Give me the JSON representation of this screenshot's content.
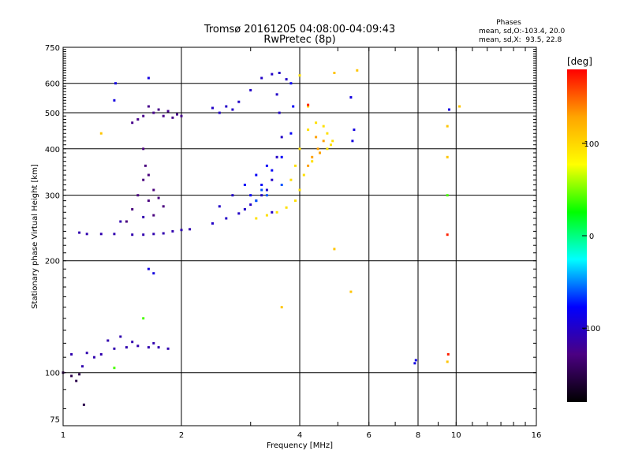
{
  "chart_data": {
    "type": "scatter",
    "title": "Tromsø 20161205 04:08:00-04:09:43",
    "subtitle": "RwPretec (8p)",
    "xlabel": "Frequency [MHz]",
    "ylabel": "Stationary phase Virtual Height [km]",
    "x_scale": "log",
    "y_scale": "log",
    "xlim": [
      1,
      16
    ],
    "ylim": [
      72,
      750
    ],
    "x_ticks": [
      1,
      2,
      4,
      6,
      8,
      10,
      16
    ],
    "y_ticks": [
      75,
      100,
      200,
      300,
      400,
      500,
      600,
      750
    ],
    "x_grid": [
      2,
      4,
      6,
      8,
      10
    ],
    "y_grid": [
      100,
      200,
      300,
      400,
      500,
      600
    ],
    "phase_info": {
      "heading": "Phases",
      "line_o": "mean, sd,O:-103.4, 20.0",
      "line_x": "mean, sd,X:  93.5, 22.8"
    },
    "colorbar": {
      "label": "[deg]",
      "range": [
        -180,
        180
      ],
      "ticks": [
        100,
        0,
        -100
      ],
      "colormap": "rainbow",
      "colors": [
        "#000000",
        "#4b0082",
        "#0000ff",
        "#00ffff",
        "#00ff00",
        "#ffff00",
        "#ffa500",
        "#ff0000"
      ]
    },
    "series": [
      {
        "mode": "O",
        "phase": -150,
        "points": [
          [
            1.0,
            100
          ],
          [
            1.05,
            98
          ],
          [
            1.1,
            99
          ],
          [
            1.13,
            82
          ],
          [
            1.08,
            95
          ]
        ]
      },
      {
        "mode": "O",
        "phase": -110,
        "points": [
          [
            1.05,
            112
          ],
          [
            1.15,
            113
          ],
          [
            1.25,
            112
          ],
          [
            1.35,
            116
          ],
          [
            1.45,
            117
          ],
          [
            1.55,
            118
          ],
          [
            1.65,
            117
          ],
          [
            1.75,
            117
          ],
          [
            1.85,
            116
          ],
          [
            1.3,
            122
          ],
          [
            1.5,
            121
          ],
          [
            1.7,
            120
          ],
          [
            1.12,
            104
          ],
          [
            1.2,
            110
          ],
          [
            1.4,
            125
          ]
        ]
      },
      {
        "mode": "O",
        "phase": -110,
        "points": [
          [
            1.1,
            238
          ],
          [
            1.15,
            236
          ],
          [
            1.25,
            236
          ],
          [
            1.35,
            236
          ],
          [
            1.5,
            235
          ],
          [
            1.6,
            235
          ],
          [
            1.7,
            236
          ],
          [
            1.8,
            237
          ],
          [
            1.9,
            240
          ],
          [
            2.0,
            242
          ],
          [
            2.1,
            243
          ],
          [
            1.4,
            255
          ],
          [
            1.6,
            262
          ]
        ]
      },
      {
        "mode": "O",
        "phase": -130,
        "points": [
          [
            1.45,
            255
          ],
          [
            1.5,
            275
          ],
          [
            1.55,
            300
          ],
          [
            1.6,
            330
          ],
          [
            1.62,
            360
          ],
          [
            1.6,
            400
          ],
          [
            1.65,
            290
          ],
          [
            1.7,
            310
          ],
          [
            1.75,
            295
          ],
          [
            1.8,
            280
          ],
          [
            1.65,
            340
          ],
          [
            1.7,
            265
          ]
        ]
      },
      {
        "mode": "O",
        "phase": -125,
        "points": [
          [
            1.5,
            470
          ],
          [
            1.6,
            490
          ],
          [
            1.7,
            500
          ],
          [
            1.8,
            490
          ],
          [
            1.9,
            485
          ],
          [
            2.0,
            490
          ],
          [
            1.65,
            520
          ],
          [
            1.75,
            510
          ],
          [
            1.85,
            505
          ],
          [
            1.95,
            495
          ],
          [
            1.55,
            480
          ]
        ]
      },
      {
        "mode": "O",
        "phase": -100,
        "points": [
          [
            2.4,
            515
          ],
          [
            2.6,
            520
          ],
          [
            2.8,
            535
          ],
          [
            3.0,
            575
          ],
          [
            3.2,
            620
          ],
          [
            3.4,
            635
          ],
          [
            3.55,
            640
          ],
          [
            3.7,
            615
          ],
          [
            2.5,
            500
          ],
          [
            2.7,
            510
          ]
        ]
      },
      {
        "mode": "O",
        "phase": -100,
        "points": [
          [
            2.4,
            252
          ],
          [
            2.6,
            260
          ],
          [
            2.8,
            268
          ],
          [
            2.9,
            275
          ],
          [
            3.0,
            283
          ],
          [
            3.1,
            290
          ],
          [
            3.2,
            300
          ],
          [
            3.3,
            310
          ],
          [
            3.4,
            330
          ],
          [
            3.5,
            380
          ],
          [
            3.6,
            430
          ],
          [
            3.55,
            500
          ],
          [
            3.5,
            560
          ],
          [
            2.5,
            280
          ],
          [
            2.7,
            300
          ],
          [
            3.4,
            270
          ]
        ]
      },
      {
        "mode": "O",
        "phase": -80,
        "points": [
          [
            3.0,
            300
          ],
          [
            3.2,
            320
          ],
          [
            3.4,
            350
          ],
          [
            3.6,
            380
          ],
          [
            3.8,
            440
          ],
          [
            3.85,
            520
          ],
          [
            3.8,
            600
          ],
          [
            3.1,
            340
          ],
          [
            3.3,
            360
          ],
          [
            2.9,
            320
          ]
        ]
      },
      {
        "mode": "X",
        "phase": 95,
        "points": [
          [
            3.1,
            260
          ],
          [
            3.3,
            265
          ],
          [
            3.5,
            270
          ],
          [
            3.7,
            278
          ],
          [
            3.9,
            290
          ],
          [
            4.0,
            310
          ],
          [
            4.1,
            340
          ],
          [
            4.3,
            370
          ],
          [
            4.5,
            390
          ],
          [
            4.7,
            400
          ],
          [
            4.8,
            410
          ],
          [
            4.85,
            420
          ],
          [
            4.7,
            440
          ],
          [
            4.6,
            460
          ],
          [
            4.4,
            470
          ],
          [
            4.2,
            450
          ],
          [
            4.0,
            400
          ],
          [
            3.9,
            360
          ],
          [
            3.8,
            330
          ],
          [
            4.0,
            630
          ],
          [
            4.2,
            520
          ]
        ]
      },
      {
        "mode": "X",
        "phase": 130,
        "points": [
          [
            4.3,
            380
          ],
          [
            4.45,
            400
          ],
          [
            4.6,
            420
          ],
          [
            4.5,
            390
          ],
          [
            4.2,
            360
          ],
          [
            4.4,
            430
          ]
        ]
      },
      {
        "mode": "mixed",
        "phase": -60,
        "points": [
          [
            3.1,
            290
          ],
          [
            3.3,
            300
          ],
          [
            3.2,
            310
          ],
          [
            3.6,
            320
          ]
        ]
      },
      {
        "mode": "scattered",
        "phase": -90,
        "points": [
          [
            1.36,
            600
          ],
          [
            1.35,
            540
          ],
          [
            1.65,
            620
          ],
          [
            1.65,
            190
          ],
          [
            1.7,
            185
          ],
          [
            5.4,
            550
          ],
          [
            5.5,
            450
          ],
          [
            5.45,
            420
          ],
          [
            7.85,
            106
          ],
          [
            7.9,
            108
          ],
          [
            9.6,
            510
          ]
        ]
      },
      {
        "mode": "scattered",
        "phase": 110,
        "points": [
          [
            1.25,
            440
          ],
          [
            4.9,
            640
          ],
          [
            5.6,
            650
          ],
          [
            9.5,
            460
          ],
          [
            9.5,
            380
          ],
          [
            10.2,
            520
          ],
          [
            9.5,
            107
          ],
          [
            3.6,
            150
          ],
          [
            5.4,
            165
          ],
          [
            4.9,
            215
          ]
        ]
      },
      {
        "mode": "scattered",
        "phase": 170,
        "points": [
          [
            9.5,
            235
          ],
          [
            9.55,
            112
          ],
          [
            4.2,
            525
          ]
        ]
      },
      {
        "mode": "scattered",
        "phase": 40,
        "points": [
          [
            1.35,
            103
          ],
          [
            9.5,
            300
          ],
          [
            1.6,
            140
          ]
        ]
      }
    ]
  }
}
